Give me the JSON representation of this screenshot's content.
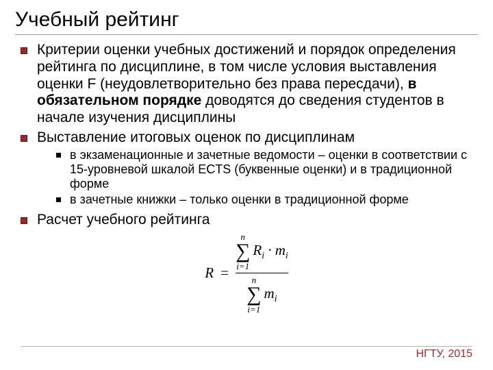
{
  "title": "Учебный рейтинг",
  "colors": {
    "bullet1_fill": "#9a2a2a",
    "bullet1_border": "#5a1818",
    "bullet2_fill": "#000000",
    "divider": "#999999",
    "footer_text": "#9a2a2a",
    "footer_line": "#b7b7b7",
    "text": "#000000",
    "background": "#ffffff"
  },
  "typography": {
    "title_size_pt": 30,
    "body_size_pt": 21,
    "sub_size_pt": 18,
    "footer_size_pt": 16,
    "formula_font": "Times New Roman"
  },
  "bullets": [
    {
      "text_parts": {
        "a": "Критерии оценки учебных достижений и порядок определения рейтинга по дисциплине, в том числе условия выставления оценки F (неудовлетворительно без права пересдачи), ",
        "b_bold": "в обязательном порядке",
        "c": " доводятся до сведения студентов в начале изучения дисциплины"
      }
    },
    {
      "text": "Выставление итоговых оценок по дисциплинам",
      "sub": [
        "в экзаменационные и зачетные ведомости – оценки в соответствии с 15-уровневой шкалой ECTS (буквенные оценки) и в традиционной форме",
        "в зачетные книжки – только оценки в традиционной форме"
      ]
    },
    {
      "text": "Расчет учебного рейтинга"
    }
  ],
  "formula": {
    "lhs": "R",
    "eq": "=",
    "sum_upper": "n",
    "sum_lower": "i=1",
    "numerator_body": "Rᵢ · mᵢ",
    "denominator_body": "mᵢ",
    "numerator_plain": "R_i * m_i",
    "denominator_plain": "m_i"
  },
  "footer": "НГТУ, 2015"
}
